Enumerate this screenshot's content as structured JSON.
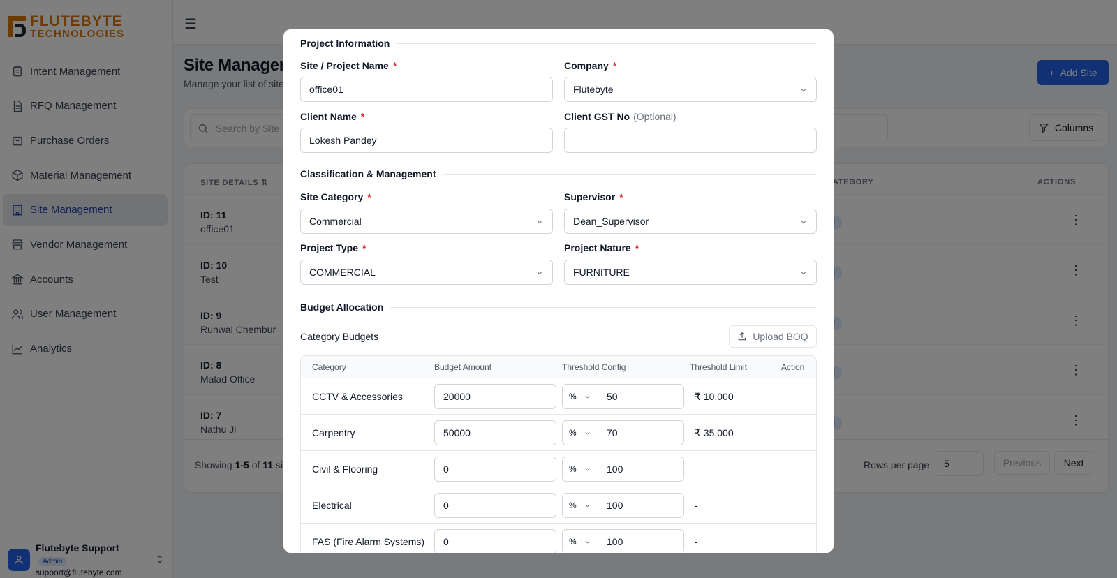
{
  "brand": {
    "line1": "FLUTEBYTE",
    "line2": "TECHNOLOGIES"
  },
  "sidebar": {
    "items": [
      {
        "label": "Intent Management",
        "icon": "clipboard-icon"
      },
      {
        "label": "RFQ Management",
        "icon": "file-text-icon"
      },
      {
        "label": "Purchase Orders",
        "icon": "shopping-bag-icon"
      },
      {
        "label": "Material Management",
        "icon": "package-icon"
      },
      {
        "label": "Site Management",
        "icon": "building-icon",
        "active": true
      },
      {
        "label": "Vendor Management",
        "icon": "store-icon"
      },
      {
        "label": "Accounts",
        "icon": "bank-icon"
      },
      {
        "label": "User Management",
        "icon": "users-icon"
      },
      {
        "label": "Analytics",
        "icon": "chart-icon"
      }
    ],
    "user": {
      "name": "Flutebyte Support",
      "role": "Admin",
      "email": "support@flutebyte.com"
    }
  },
  "page": {
    "title": "Site Managem",
    "subtitle": "Manage your list of site",
    "add_button": "Add Site",
    "search_placeholder": "Search by Site N",
    "columns_button": "Columns"
  },
  "table": {
    "headers": {
      "site_details": "SITE DETAILS",
      "category": "CATEGORY",
      "actions": "ACTIONS"
    },
    "rows": [
      {
        "id": "ID: 11",
        "name": "office01",
        "badge": "mercial"
      },
      {
        "id": "ID: 10",
        "name": "Test",
        "badge": "mercial"
      },
      {
        "id": "ID: 9",
        "name": "Runwal Chembur",
        "badge": "mercial"
      },
      {
        "id": "ID: 8",
        "name": "Malad Office",
        "badge": "mercial"
      },
      {
        "id": "ID: 7",
        "name": "Nathu Ji",
        "badge": "mercial"
      }
    ],
    "footer": {
      "showing_prefix": "Showing",
      "range": "1-5",
      "of": "of",
      "total": "11",
      "suffix": "si",
      "rows_per_page_label": "Rows per page",
      "rows_per_page": "5",
      "previous": "Previous",
      "next": "Next"
    }
  },
  "modal": {
    "sections": {
      "project_info": "Project Information",
      "classification": "Classification & Management",
      "budget": "Budget Allocation"
    },
    "fields": {
      "site_name": {
        "label": "Site / Project Name",
        "value": "office01"
      },
      "company": {
        "label": "Company",
        "value": "Flutebyte"
      },
      "client_name": {
        "label": "Client Name",
        "value": "Lokesh Pandey"
      },
      "client_gst": {
        "label": "Client GST No",
        "optional": "(Optional)",
        "value": ""
      },
      "site_category": {
        "label": "Site Category",
        "value": "Commercial"
      },
      "supervisor": {
        "label": "Supervisor",
        "value": "Dean_Supervisor"
      },
      "project_type": {
        "label": "Project Type",
        "value": "COMMERCIAL"
      },
      "project_nature": {
        "label": "Project Nature",
        "value": "FURNITURE"
      }
    },
    "required_mark": "*",
    "category_budgets_title": "Category Budgets",
    "upload_button": "Upload BOQ",
    "budget_table": {
      "headers": [
        "Category",
        "Budget Amount",
        "Threshold Config",
        "Threshold Limit",
        "Action"
      ],
      "rows": [
        {
          "category": "CCTV & Accessories",
          "amount": "20000",
          "unit": "%",
          "threshold": "50",
          "limit": "₹ 10,000"
        },
        {
          "category": "Carpentry",
          "amount": "50000",
          "unit": "%",
          "threshold": "70",
          "limit": "₹ 35,000"
        },
        {
          "category": "Civil & Flooring",
          "amount": "0",
          "unit": "%",
          "threshold": "100",
          "limit": "-"
        },
        {
          "category": "Electrical",
          "amount": "0",
          "unit": "%",
          "threshold": "100",
          "limit": "-"
        },
        {
          "category": "FAS (Fire Alarm Systems)",
          "amount": "0",
          "unit": "%",
          "threshold": "100",
          "limit": "-"
        }
      ]
    }
  },
  "colors": {
    "primary": "#2563eb",
    "brand_orange": "#d97706",
    "required": "#dc2626",
    "active_nav": "#1e40af"
  }
}
